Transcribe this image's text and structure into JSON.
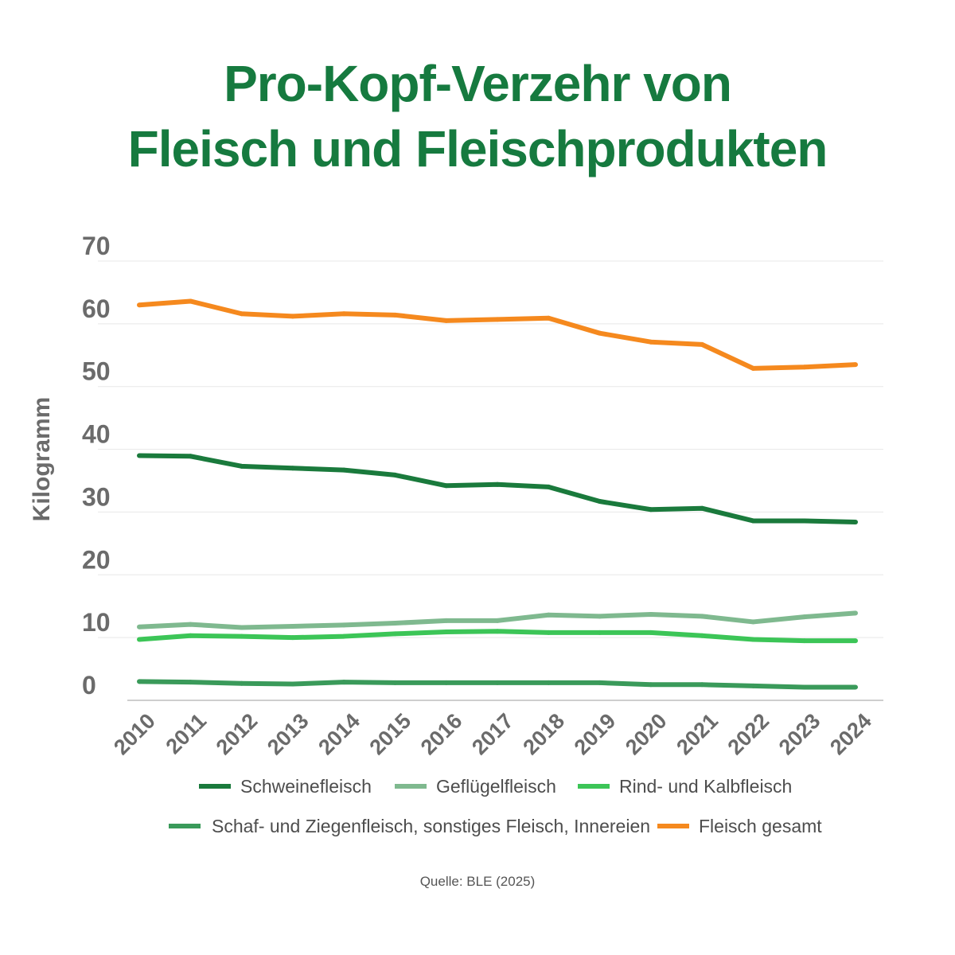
{
  "title_line1": "Pro-Kopf-Verzehr von",
  "title_line2": "Fleisch und Fleischprodukten",
  "source": "Quelle: BLE (2025)",
  "colors": {
    "title": "#167a3f",
    "axis_text": "#6b6b6b",
    "grid": "#e8e8e8"
  },
  "chart_data": {
    "type": "line",
    "title": "Pro-Kopf-Verzehr von Fleisch und Fleischprodukten",
    "xlabel": "",
    "ylabel": "Kilogramm",
    "ylim": [
      0,
      70
    ],
    "yticks": [
      0,
      10,
      20,
      30,
      40,
      50,
      60,
      70
    ],
    "grid": true,
    "legend_position": "bottom",
    "categories": [
      "2010",
      "2011",
      "2012",
      "2013",
      "2014",
      "2015",
      "2016",
      "2017",
      "2018",
      "2019",
      "2020",
      "2021",
      "2022",
      "2023",
      "2024"
    ],
    "series": [
      {
        "name": "Schweinefleisch",
        "color": "#1a7a3c",
        "values": [
          39.0,
          38.9,
          37.3,
          37.0,
          36.7,
          35.9,
          34.2,
          34.4,
          34.0,
          31.7,
          30.4,
          30.6,
          28.6,
          28.6,
          28.4
        ]
      },
      {
        "name": "Geflügelfleisch",
        "color": "#7fb98f",
        "values": [
          11.7,
          12.1,
          11.6,
          11.8,
          12.0,
          12.3,
          12.7,
          12.7,
          13.6,
          13.4,
          13.7,
          13.4,
          12.5,
          13.3,
          13.9
        ]
      },
      {
        "name": "Rind- und Kalbfleisch",
        "color": "#3cc557",
        "values": [
          9.7,
          10.3,
          10.2,
          10.0,
          10.2,
          10.6,
          10.9,
          11.0,
          10.8,
          10.8,
          10.8,
          10.3,
          9.7,
          9.5,
          9.5
        ]
      },
      {
        "name": "Schaf- und Ziegenfleisch, sonstiges Fleisch, Innereien",
        "color": "#3a9a5a",
        "values": [
          3.0,
          2.9,
          2.7,
          2.6,
          2.9,
          2.8,
          2.8,
          2.8,
          2.8,
          2.8,
          2.5,
          2.5,
          2.3,
          2.1,
          2.1
        ]
      },
      {
        "name": "Fleisch gesamt",
        "color": "#f5891e",
        "values": [
          63.0,
          63.6,
          61.6,
          61.2,
          61.6,
          61.4,
          60.5,
          60.7,
          60.9,
          58.5,
          57.1,
          56.7,
          52.9,
          53.1,
          53.5
        ]
      }
    ]
  }
}
